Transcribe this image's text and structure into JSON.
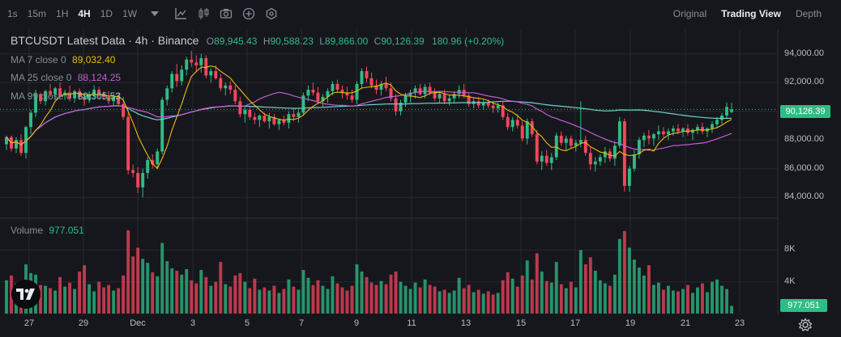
{
  "toolbar": {
    "timeframes": [
      "1s",
      "15m",
      "1H",
      "4H",
      "1D",
      "1W"
    ],
    "active_timeframe": "4H",
    "views": [
      "Original",
      "Trading View",
      "Depth"
    ],
    "active_view": "Trading View"
  },
  "legend": {
    "title": "BTCUSDT Latest Data · 4h · Binance",
    "open_label": "O",
    "open": "89,945.43",
    "high_label": "H",
    "high": "90,588.23",
    "low_label": "L",
    "low": "89,866.00",
    "close_label": "C",
    "close": "90,126.39",
    "change": "180.96 (+0.20%)",
    "ma7_label": "MA 7 close 0",
    "ma7_value": "89,032.40",
    "ma25_label": "MA 25 close 0",
    "ma25_value": "88,124.25",
    "ma99_label": "MA 99 close 0",
    "ma99_value": "89,305.53",
    "volume_label": "Volume",
    "volume_value": "977.051"
  },
  "price_axis": [
    "94,000.00",
    "92,000.00",
    "90,000.00",
    "88,000.00",
    "86,000.00",
    "84,000.00"
  ],
  "last_price": "90,126.39",
  "volume_axis": [
    "8K",
    "4K"
  ],
  "last_volume": "977.051",
  "x_axis": [
    "27",
    "29",
    "Dec",
    "3",
    "5",
    "7",
    "9",
    "11",
    "13",
    "15",
    "17",
    "19",
    "21",
    "23"
  ],
  "colors": {
    "up": "#2ebd85",
    "down": "#f6465d",
    "ma7": "#f0b90b",
    "ma25": "#c55cd9",
    "ma99": "#6fd3cf",
    "background": "#16171c",
    "grid": "#262930"
  },
  "chart_data": {
    "type": "candlestick",
    "symbol": "BTCUSDT",
    "interval": "4h",
    "exchange": "Binance",
    "y_range": [
      83000,
      95500
    ],
    "volume_range": [
      0,
      11000
    ],
    "grid": true,
    "candles": [
      [
        87700,
        88300,
        87300,
        88200,
        4200
      ],
      [
        88200,
        88300,
        87200,
        87400,
        4800
      ],
      [
        87400,
        88200,
        87100,
        88000,
        3800
      ],
      [
        88000,
        88400,
        86900,
        87100,
        4100
      ],
      [
        87100,
        89000,
        86700,
        88900,
        6200
      ],
      [
        88900,
        90100,
        88400,
        89900,
        5100
      ],
      [
        89900,
        91500,
        89600,
        91200,
        4900
      ],
      [
        91200,
        91300,
        90500,
        90700,
        3600
      ],
      [
        90700,
        91500,
        90400,
        91400,
        3500
      ],
      [
        91400,
        91900,
        91000,
        91200,
        3200
      ],
      [
        91200,
        91700,
        90800,
        91600,
        2900
      ],
      [
        91600,
        92000,
        91000,
        91100,
        4600
      ],
      [
        91100,
        91500,
        90800,
        91300,
        3400
      ],
      [
        91300,
        91800,
        90700,
        90900,
        3900
      ],
      [
        90900,
        91500,
        90600,
        91400,
        3100
      ],
      [
        91400,
        91600,
        90800,
        91000,
        5300
      ],
      [
        91000,
        91300,
        90400,
        90800,
        6100
      ],
      [
        90800,
        91400,
        90600,
        91200,
        3700
      ],
      [
        91200,
        91800,
        90900,
        91500,
        2800
      ],
      [
        91500,
        91700,
        90900,
        91200,
        4000
      ],
      [
        91200,
        91400,
        90800,
        91000,
        3300
      ],
      [
        91000,
        91400,
        90500,
        90700,
        3600
      ],
      [
        90700,
        91200,
        90400,
        91000,
        2900
      ],
      [
        91000,
        91300,
        90400,
        90500,
        3200
      ],
      [
        90500,
        91000,
        89400,
        89600,
        4800
      ],
      [
        89600,
        89900,
        85600,
        85900,
        10500
      ],
      [
        85900,
        86300,
        85400,
        85700,
        7200
      ],
      [
        85700,
        86100,
        84300,
        84700,
        8300
      ],
      [
        84700,
        86000,
        84000,
        85700,
        6900
      ],
      [
        85700,
        86800,
        85300,
        86600,
        6400
      ],
      [
        86600,
        87000,
        86000,
        86300,
        5200
      ],
      [
        86300,
        87400,
        86000,
        87200,
        4700
      ],
      [
        87200,
        91000,
        87000,
        90800,
        8900
      ],
      [
        90800,
        91800,
        90400,
        91600,
        6600
      ],
      [
        91600,
        92800,
        91300,
        92600,
        5700
      ],
      [
        92600,
        93300,
        91700,
        92100,
        5400
      ],
      [
        92100,
        93200,
        91800,
        92900,
        4900
      ],
      [
        92900,
        93800,
        92500,
        93600,
        5600
      ],
      [
        93600,
        94200,
        93100,
        93400,
        4200
      ],
      [
        93400,
        93900,
        92800,
        93200,
        3800
      ],
      [
        93200,
        94000,
        92700,
        93700,
        5500
      ],
      [
        93700,
        93900,
        92300,
        92500,
        4600
      ],
      [
        92500,
        93000,
        92000,
        92800,
        3500
      ],
      [
        92800,
        93200,
        92200,
        92300,
        4000
      ],
      [
        92300,
        92600,
        91400,
        91600,
        6500
      ],
      [
        91600,
        92000,
        91100,
        91800,
        3700
      ],
      [
        91800,
        92100,
        91200,
        91500,
        3400
      ],
      [
        91500,
        91800,
        90500,
        90700,
        4800
      ],
      [
        90700,
        91000,
        89600,
        89800,
        5100
      ],
      [
        89800,
        90400,
        89200,
        90100,
        4000
      ],
      [
        90100,
        90300,
        89400,
        89600,
        3200
      ],
      [
        89600,
        89900,
        89100,
        89400,
        4400
      ],
      [
        89400,
        89800,
        88900,
        89700,
        3000
      ],
      [
        89700,
        89900,
        89200,
        89300,
        3300
      ],
      [
        89300,
        89900,
        88800,
        89600,
        2900
      ],
      [
        89600,
        89800,
        89000,
        89100,
        3500
      ],
      [
        89100,
        89500,
        88700,
        89400,
        2600
      ],
      [
        89400,
        89700,
        89000,
        89200,
        3100
      ],
      [
        89200,
        90000,
        88800,
        89800,
        4300
      ],
      [
        89800,
        90200,
        89300,
        89600,
        3400
      ],
      [
        89600,
        90100,
        89200,
        89900,
        3000
      ],
      [
        89900,
        91300,
        89700,
        91100,
        5500
      ],
      [
        91100,
        91800,
        90700,
        91500,
        4500
      ],
      [
        91500,
        92000,
        91100,
        91300,
        3600
      ],
      [
        91300,
        91700,
        90500,
        90700,
        4200
      ],
      [
        90700,
        91200,
        90300,
        91000,
        3500
      ],
      [
        91000,
        91600,
        90600,
        91400,
        3100
      ],
      [
        91400,
        92100,
        91100,
        91900,
        4700
      ],
      [
        91900,
        92200,
        91300,
        91500,
        3800
      ],
      [
        91500,
        91800,
        90900,
        91300,
        3300
      ],
      [
        91300,
        91700,
        90800,
        91100,
        2900
      ],
      [
        91100,
        91500,
        90600,
        90800,
        3500
      ],
      [
        90800,
        92100,
        90500,
        91900,
        6200
      ],
      [
        91900,
        93000,
        91600,
        92800,
        5300
      ],
      [
        92800,
        93100,
        92000,
        92300,
        4600
      ],
      [
        92300,
        92700,
        91600,
        91800,
        3900
      ],
      [
        91800,
        92200,
        91200,
        91500,
        3600
      ],
      [
        91500,
        92100,
        91100,
        91900,
        4100
      ],
      [
        91900,
        92400,
        91400,
        91600,
        3700
      ],
      [
        91600,
        92000,
        90700,
        90900,
        4900
      ],
      [
        90900,
        91200,
        89700,
        90000,
        5300
      ],
      [
        90000,
        90800,
        89700,
        90600,
        4000
      ],
      [
        90600,
        91300,
        90300,
        91100,
        3500
      ],
      [
        91100,
        91500,
        90600,
        91300,
        3100
      ],
      [
        91300,
        91800,
        90900,
        91600,
        3900
      ],
      [
        91600,
        91900,
        91100,
        91200,
        3300
      ],
      [
        91200,
        91900,
        90900,
        91700,
        4300
      ],
      [
        91700,
        92000,
        91100,
        91300,
        3600
      ],
      [
        91300,
        91600,
        90700,
        90900,
        3400
      ],
      [
        90900,
        91400,
        90600,
        91200,
        2800
      ],
      [
        91200,
        91500,
        90500,
        90700,
        3000
      ],
      [
        90700,
        91100,
        90400,
        90900,
        2600
      ],
      [
        90900,
        91400,
        90600,
        91200,
        2900
      ],
      [
        91200,
        91800,
        90900,
        91500,
        4500
      ],
      [
        91500,
        91900,
        90900,
        91100,
        3200
      ],
      [
        91100,
        91300,
        90300,
        90500,
        3600
      ],
      [
        90500,
        90900,
        90200,
        90700,
        2700
      ],
      [
        90700,
        91000,
        90200,
        90400,
        3000
      ],
      [
        90400,
        90800,
        90100,
        90600,
        2500
      ],
      [
        90600,
        90800,
        90200,
        90400,
        2800
      ],
      [
        90400,
        90700,
        89900,
        90200,
        2400
      ],
      [
        90200,
        90600,
        89900,
        90400,
        2600
      ],
      [
        90400,
        90700,
        89400,
        89600,
        4200
      ],
      [
        89600,
        89900,
        88700,
        88900,
        5200
      ],
      [
        88900,
        89600,
        88600,
        89400,
        4400
      ],
      [
        89400,
        89800,
        88800,
        89000,
        3400
      ],
      [
        89000,
        89300,
        87900,
        88100,
        4800
      ],
      [
        88100,
        89500,
        87700,
        89300,
        6700
      ],
      [
        89300,
        89500,
        88200,
        88400,
        4300
      ],
      [
        88400,
        88700,
        86300,
        86500,
        7600
      ],
      [
        86500,
        87200,
        85900,
        86900,
        5300
      ],
      [
        86900,
        87300,
        86200,
        86400,
        4100
      ],
      [
        86400,
        87100,
        85900,
        86800,
        3900
      ],
      [
        86800,
        88500,
        86600,
        88300,
        6500
      ],
      [
        88300,
        88600,
        87600,
        87800,
        3700
      ],
      [
        87800,
        88300,
        87300,
        88100,
        3200
      ],
      [
        88100,
        88300,
        87400,
        87600,
        4000
      ],
      [
        87600,
        88000,
        87200,
        87800,
        3300
      ],
      [
        87800,
        90700,
        87500,
        88000,
        8000
      ],
      [
        88000,
        88300,
        86900,
        87100,
        6200
      ],
      [
        87100,
        87500,
        85900,
        86300,
        7100
      ],
      [
        86300,
        86800,
        85800,
        86500,
        5400
      ],
      [
        86500,
        87000,
        86200,
        86800,
        4200
      ],
      [
        86800,
        87500,
        86400,
        87200,
        3800
      ],
      [
        87200,
        87400,
        86500,
        86700,
        3500
      ],
      [
        86700,
        87900,
        86200,
        87600,
        4900
      ],
      [
        87600,
        89600,
        87400,
        89300,
        9400
      ],
      [
        89300,
        89500,
        84400,
        84800,
        10400
      ],
      [
        84800,
        86200,
        84400,
        86000,
        8300
      ],
      [
        86000,
        87300,
        85800,
        87000,
        6800
      ],
      [
        87000,
        88200,
        86700,
        88000,
        5800
      ],
      [
        88000,
        88500,
        87500,
        88300,
        4800
      ],
      [
        88300,
        88700,
        87700,
        88100,
        6100
      ],
      [
        88100,
        88500,
        87600,
        88400,
        3600
      ],
      [
        88400,
        89000,
        88000,
        88600,
        3900
      ],
      [
        88600,
        88900,
        88200,
        88400,
        3000
      ],
      [
        88400,
        88800,
        88000,
        88600,
        3500
      ],
      [
        88600,
        89000,
        88300,
        88800,
        2900
      ],
      [
        88800,
        89100,
        88400,
        88600,
        2800
      ],
      [
        88600,
        88900,
        88200,
        88800,
        3100
      ],
      [
        88800,
        89100,
        88300,
        88500,
        3600
      ],
      [
        88500,
        88800,
        88000,
        88700,
        2600
      ],
      [
        88700,
        89100,
        88400,
        88900,
        3300
      ],
      [
        88900,
        89200,
        88400,
        88600,
        3800
      ],
      [
        88600,
        88900,
        88200,
        88800,
        2700
      ],
      [
        88800,
        89300,
        88500,
        89100,
        4000
      ],
      [
        89100,
        89600,
        88800,
        89400,
        4300
      ],
      [
        89400,
        89900,
        89100,
        89700,
        3500
      ],
      [
        89700,
        90600,
        89500,
        90300,
        3100
      ],
      [
        89945.43,
        90588.23,
        89866,
        90126.39,
        977
      ]
    ]
  }
}
